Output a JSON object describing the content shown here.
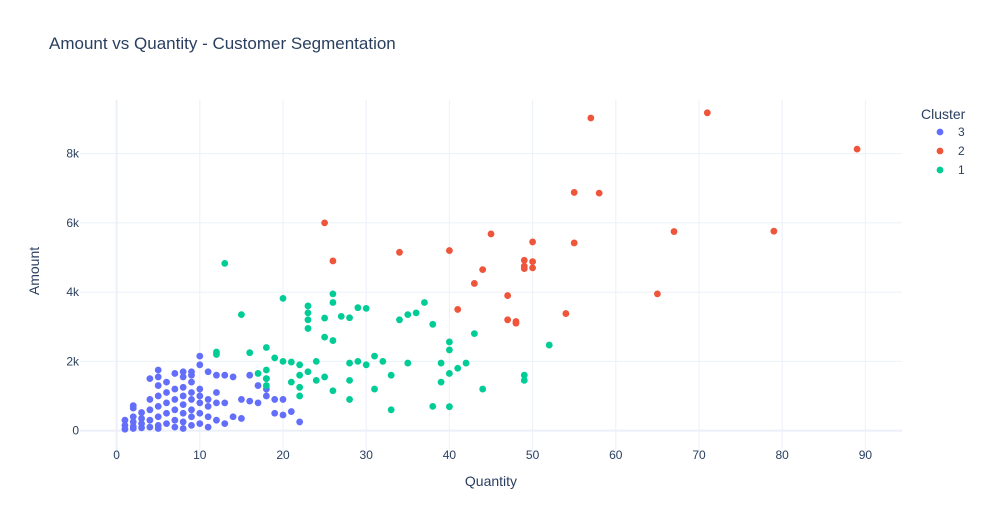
{
  "chart_data": {
    "type": "scatter",
    "title": "Amount vs Quantity - Customer Segmentation",
    "xlabel": "Quantity",
    "ylabel": "Amount",
    "xlim": [
      -4.4,
      94.4
    ],
    "ylim": [
      -850,
      9550
    ],
    "xticks": [
      0,
      10,
      20,
      30,
      40,
      50,
      60,
      70,
      80,
      90
    ],
    "yticks": [
      0,
      2000,
      4000,
      6000,
      8000
    ],
    "ytick_labels": [
      "0",
      "2k",
      "4k",
      "6k",
      "8k"
    ],
    "grid": true,
    "legend": {
      "title": "Cluster",
      "placement": "top-right"
    },
    "series": [
      {
        "name": "3",
        "color": "#636efa",
        "x": [
          1,
          1,
          1,
          2,
          2,
          2,
          2,
          2,
          2,
          3,
          3,
          3,
          3,
          4,
          4,
          4,
          4,
          4,
          5,
          5,
          5,
          5,
          5,
          5,
          5,
          5,
          6,
          6,
          6,
          6,
          6,
          7,
          7,
          7,
          7,
          7,
          7,
          8,
          8,
          8,
          8,
          8,
          8,
          8,
          8,
          9,
          9,
          9,
          9,
          9,
          9,
          9,
          9,
          10,
          10,
          10,
          10,
          10,
          10,
          10,
          11,
          11,
          11,
          11,
          11,
          12,
          12,
          12,
          12,
          13,
          13,
          13,
          14,
          14,
          15,
          15,
          16,
          16,
          17,
          17,
          18,
          18,
          18,
          19,
          19,
          20,
          20,
          21,
          22
        ],
        "y": [
          40,
          150,
          300,
          60,
          250,
          400,
          650,
          720,
          120,
          80,
          200,
          350,
          520,
          100,
          300,
          600,
          900,
          1500,
          60,
          150,
          400,
          700,
          1000,
          1300,
          1550,
          1750,
          200,
          500,
          800,
          1100,
          1400,
          100,
          300,
          600,
          900,
          1200,
          1650,
          60,
          250,
          500,
          750,
          1000,
          1250,
          1550,
          1700,
          150,
          400,
          600,
          900,
          1100,
          1400,
          1600,
          1700,
          200,
          500,
          800,
          1000,
          1200,
          1900,
          2150,
          100,
          400,
          700,
          900,
          1700,
          300,
          800,
          1100,
          1600,
          200,
          800,
          1600,
          400,
          1550,
          350,
          900,
          1600,
          850,
          1300,
          800,
          1000,
          1200,
          1500,
          500,
          900,
          450,
          900,
          550,
          250
        ]
      },
      {
        "name": "2",
        "color": "#ef553b",
        "x": [
          25,
          26,
          34,
          40,
          41,
          43,
          44,
          45,
          47,
          47,
          48,
          48,
          49,
          49,
          49,
          50,
          50,
          50,
          54,
          55,
          55,
          57,
          58,
          65,
          67,
          71,
          79,
          89
        ],
        "y": [
          6000,
          4900,
          5150,
          5200,
          3500,
          4250,
          4650,
          5680,
          3900,
          3200,
          3150,
          3100,
          4680,
          4750,
          4920,
          4700,
          4880,
          5450,
          3380,
          5420,
          6880,
          9030,
          6860,
          3950,
          5750,
          9180,
          5760,
          8130
        ]
      },
      {
        "name": "1",
        "color": "#00cc96",
        "x": [
          12,
          12,
          13,
          15,
          16,
          17,
          18,
          18,
          18,
          18,
          19,
          20,
          20,
          21,
          21,
          22,
          22,
          22,
          22,
          23,
          23,
          23,
          23,
          23,
          24,
          24,
          25,
          25,
          25,
          26,
          26,
          26,
          26,
          27,
          28,
          28,
          28,
          28,
          29,
          29,
          30,
          30,
          31,
          31,
          32,
          33,
          33,
          34,
          35,
          35,
          36,
          37,
          38,
          38,
          39,
          39,
          40,
          40,
          40,
          40,
          41,
          42,
          43,
          44,
          49,
          49,
          52
        ],
        "y": [
          2200,
          2270,
          4830,
          3350,
          2250,
          1650,
          2400,
          1500,
          1750,
          1300,
          2100,
          3820,
          2000,
          1980,
          1400,
          1900,
          1600,
          1250,
          1000,
          3600,
          3400,
          3200,
          2950,
          1700,
          2000,
          1450,
          3250,
          2700,
          1550,
          3950,
          3700,
          2600,
          1150,
          3300,
          3260,
          1950,
          1450,
          900,
          3550,
          2000,
          3530,
          1900,
          2150,
          1200,
          2000,
          1600,
          600,
          3200,
          3350,
          1950,
          3400,
          3700,
          3070,
          700,
          1950,
          1400,
          2560,
          2330,
          1650,
          690,
          1800,
          1950,
          2800,
          1200,
          1600,
          1450,
          2470
        ]
      }
    ]
  }
}
